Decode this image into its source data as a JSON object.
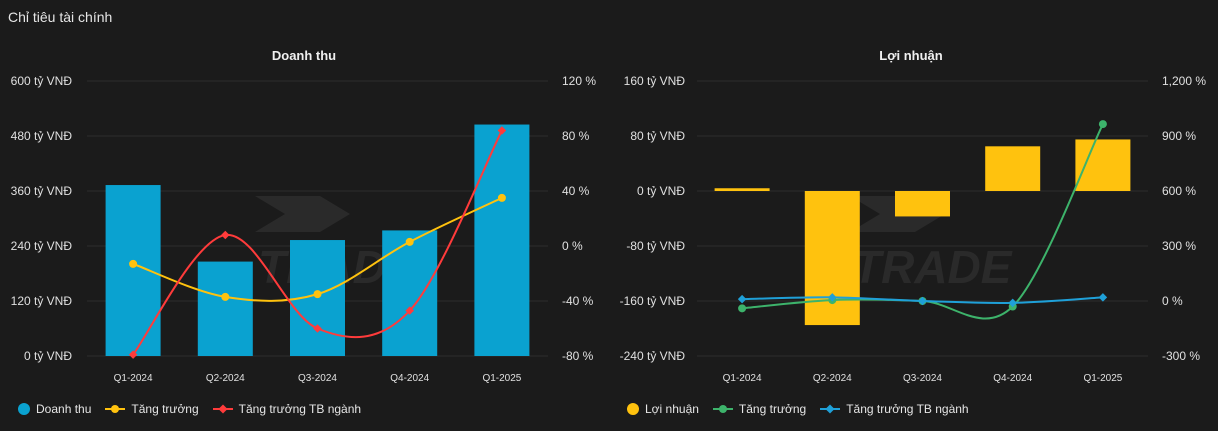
{
  "page_title": "Chỉ tiêu tài chính",
  "colors": {
    "revenue_bar": "#0aa2d0",
    "profit_bar": "#ffc20e",
    "growth_left": "#ffc20e",
    "industry_left": "#ff3b3b",
    "growth_right": "#3db36b",
    "industry_right": "#1fa0d8"
  },
  "chart_data": [
    {
      "type": "bar",
      "title": "Doanh thu",
      "categories": [
        "Q1-2024",
        "Q2-2024",
        "Q3-2024",
        "Q4-2024",
        "Q1-2025"
      ],
      "y_left": {
        "ticks": [
          "600 tỷ VNĐ",
          "480 tỷ VNĐ",
          "360 tỷ VNĐ",
          "240 tỷ VNĐ",
          "120 tỷ VNĐ",
          "0 tỷ VNĐ"
        ],
        "range": [
          0,
          600
        ]
      },
      "y_right": {
        "ticks": [
          "120 %",
          "80 %",
          "40 %",
          "0 %",
          "-40 %",
          "-80 %"
        ],
        "range": [
          -80,
          120
        ]
      },
      "series": [
        {
          "name": "Doanh thu",
          "kind": "bar",
          "axis": "left",
          "values": [
            373,
            206,
            253,
            274,
            505
          ]
        },
        {
          "name": "Tăng trưởng",
          "kind": "line",
          "axis": "right",
          "marker": "circle",
          "values": [
            -13,
            -37,
            -35,
            3,
            35
          ]
        },
        {
          "name": "Tăng trưởng TB ngành",
          "kind": "line",
          "axis": "right",
          "marker": "diamond",
          "values": [
            -79,
            8,
            -60,
            -47,
            84
          ]
        }
      ]
    },
    {
      "type": "bar",
      "title": "Lợi nhuận",
      "categories": [
        "Q1-2024",
        "Q2-2024",
        "Q3-2024",
        "Q4-2024",
        "Q1-2025"
      ],
      "y_left": {
        "ticks": [
          "160 tỷ VNĐ",
          "80 tỷ VNĐ",
          "0 tỷ VNĐ",
          "-80 tỷ VNĐ",
          "-160 tỷ VNĐ",
          "-240 tỷ VNĐ"
        ],
        "range": [
          -240,
          160
        ]
      },
      "y_right": {
        "ticks": [
          "1,200 %",
          "900 %",
          "600 %",
          "300 %",
          "0 %",
          "-300 %"
        ],
        "range": [
          -300,
          1200
        ]
      },
      "series": [
        {
          "name": "Lợi nhuận",
          "kind": "bar",
          "axis": "left",
          "values": [
            4,
            -195,
            -37,
            65,
            75
          ]
        },
        {
          "name": "Tăng trưởng",
          "kind": "line",
          "axis": "right",
          "marker": "circle",
          "values": [
            -40,
            5,
            0,
            -30,
            965
          ]
        },
        {
          "name": "Tăng trưởng TB ngành",
          "kind": "line",
          "axis": "right",
          "marker": "diamond",
          "values": [
            10,
            20,
            0,
            -10,
            20
          ]
        }
      ]
    }
  ]
}
